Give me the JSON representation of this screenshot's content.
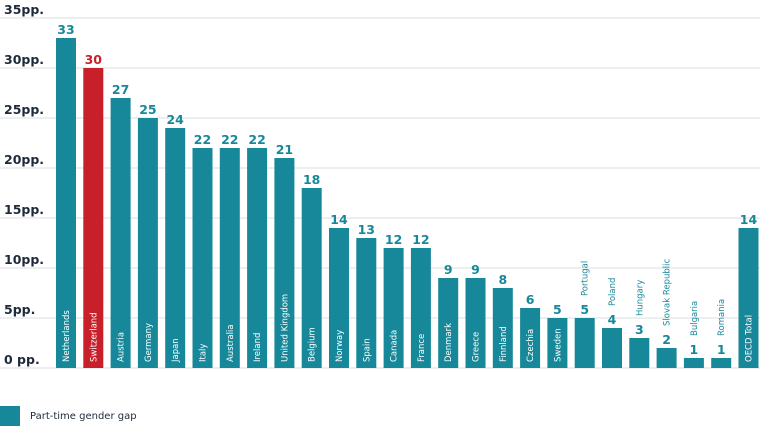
{
  "colors": {
    "teal": "#17889a",
    "highlight": "#c8202a",
    "axis_text": "#1e2a3a"
  },
  "chart_data": {
    "type": "bar",
    "ylim": [
      0,
      35
    ],
    "yticks": [
      0,
      5,
      10,
      15,
      20,
      25,
      30,
      35
    ],
    "ytick_labels": [
      "0 pp.",
      "5pp.",
      "10pp.",
      "15pp.",
      "20pp.",
      "25pp.",
      "30pp.",
      "35pp."
    ],
    "grid": true,
    "legend_position": "bottom-left",
    "highlight": "Switzerland",
    "categories": [
      "Netherlands",
      "Switzerland",
      "Austria",
      "Germany",
      "Japan",
      "Italy",
      "Australia",
      "Ireland",
      "United Kingdom",
      "Belgium",
      "Norway",
      "Spain",
      "Canada",
      "France",
      "Denmark",
      "Greece",
      "Finnland",
      "Czechia",
      "Sweden",
      "Portugal",
      "Poland",
      "Hungary",
      "Slovak Republic",
      "Bulgaria",
      "Romania",
      "OECD Total"
    ],
    "series": [
      {
        "name": "Part-time gender gap",
        "values": [
          33,
          30,
          27,
          25,
          24,
          22,
          22,
          22,
          21,
          18,
          14,
          13,
          12,
          12,
          9,
          9,
          8,
          6,
          5,
          5,
          4,
          3,
          2,
          1,
          1,
          14
        ]
      }
    ]
  }
}
